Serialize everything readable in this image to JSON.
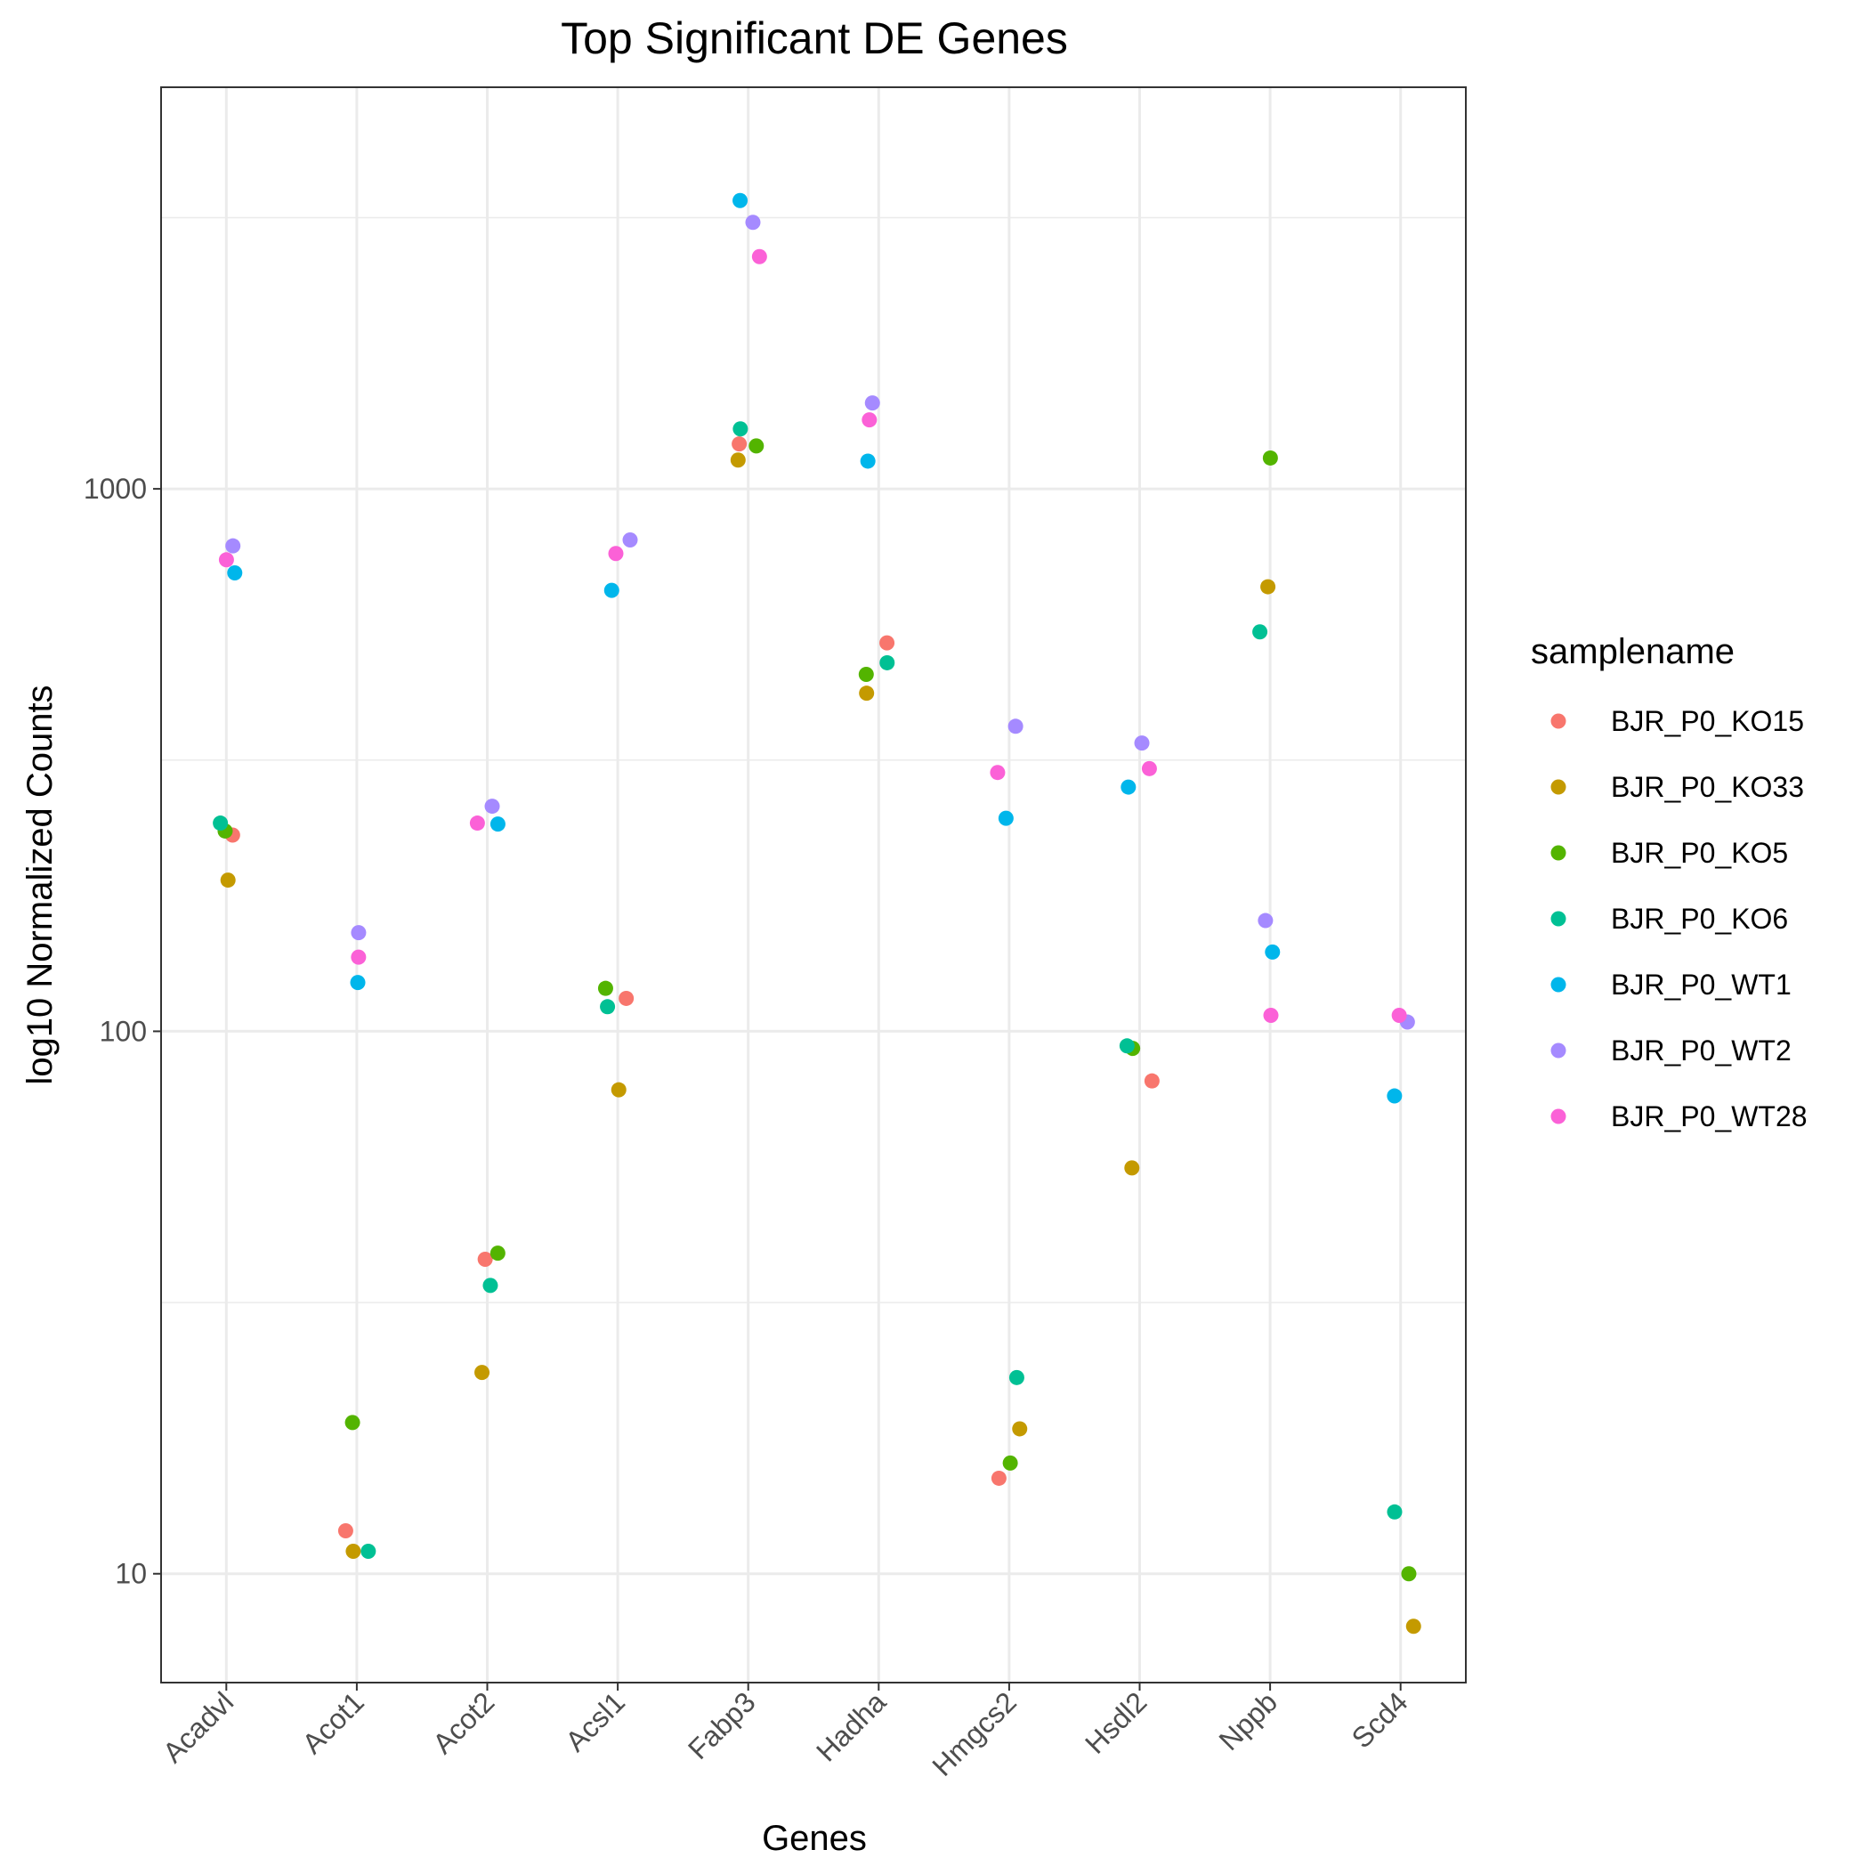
{
  "chart_data": {
    "type": "scatter",
    "title": "Top Significant DE Genes",
    "xlabel": "Genes",
    "ylabel": "log10 Normalized Counts",
    "y_scale": "log10",
    "ylim": [
      6.3,
      5500
    ],
    "y_ticks": [
      10,
      100,
      1000
    ],
    "y_tick_labels": [
      "10",
      "100",
      "1000"
    ],
    "grid": true,
    "legend": {
      "title": "samplename",
      "placement": "right"
    },
    "categories": [
      "Acadvl",
      "Acot1",
      "Acot2",
      "Acsl1",
      "Fabp3",
      "Hadha",
      "Hmgcs2",
      "Hsdl2",
      "Nppb",
      "Scd4"
    ],
    "series": [
      {
        "name": "BJR_P0_KO15",
        "color": "#F8766D",
        "points": [
          {
            "x": "Acadvl",
            "y": 230
          },
          {
            "x": "Acot1",
            "y": 12
          },
          {
            "x": "Acot2",
            "y": 38
          },
          {
            "x": "Acsl1",
            "y": 115
          },
          {
            "x": "Fabp3",
            "y": 1210
          },
          {
            "x": "Hadha",
            "y": 520
          },
          {
            "x": "Hmgcs2",
            "y": 15
          },
          {
            "x": "Hsdl2",
            "y": 81
          }
        ]
      },
      {
        "name": "BJR_P0_KO33",
        "color": "#C49A00",
        "points": [
          {
            "x": "Acadvl",
            "y": 190
          },
          {
            "x": "Acot1",
            "y": 11
          },
          {
            "x": "Acot2",
            "y": 23.5
          },
          {
            "x": "Acsl1",
            "y": 78
          },
          {
            "x": "Fabp3",
            "y": 1130
          },
          {
            "x": "Hadha",
            "y": 420
          },
          {
            "x": "Hmgcs2",
            "y": 18.5
          },
          {
            "x": "Hsdl2",
            "y": 56
          },
          {
            "x": "Nppb",
            "y": 660
          },
          {
            "x": "Scd4",
            "y": 8
          }
        ]
      },
      {
        "name": "BJR_P0_KO5",
        "color": "#53B400",
        "points": [
          {
            "x": "Acadvl",
            "y": 234
          },
          {
            "x": "Acot1",
            "y": 19
          },
          {
            "x": "Acot2",
            "y": 39
          },
          {
            "x": "Acsl1",
            "y": 120
          },
          {
            "x": "Fabp3",
            "y": 1200
          },
          {
            "x": "Hadha",
            "y": 455
          },
          {
            "x": "Hmgcs2",
            "y": 16
          },
          {
            "x": "Hsdl2",
            "y": 93
          },
          {
            "x": "Nppb",
            "y": 1140
          },
          {
            "x": "Scd4",
            "y": 10
          }
        ]
      },
      {
        "name": "BJR_P0_KO6",
        "color": "#00C094",
        "points": [
          {
            "x": "Acadvl",
            "y": 242
          },
          {
            "x": "Acot1",
            "y": 11
          },
          {
            "x": "Acot2",
            "y": 34
          },
          {
            "x": "Acsl1",
            "y": 111
          },
          {
            "x": "Fabp3",
            "y": 1290
          },
          {
            "x": "Hadha",
            "y": 478
          },
          {
            "x": "Hmgcs2",
            "y": 23
          },
          {
            "x": "Hsdl2",
            "y": 94
          },
          {
            "x": "Nppb",
            "y": 545
          },
          {
            "x": "Scd4",
            "y": 13
          }
        ]
      },
      {
        "name": "BJR_P0_WT1",
        "color": "#00B6EB",
        "points": [
          {
            "x": "Acadvl",
            "y": 700
          },
          {
            "x": "Acot1",
            "y": 123
          },
          {
            "x": "Acot2",
            "y": 241
          },
          {
            "x": "Acsl1",
            "y": 650
          },
          {
            "x": "Fabp3",
            "y": 3400
          },
          {
            "x": "Hadha",
            "y": 1125
          },
          {
            "x": "Hmgcs2",
            "y": 247
          },
          {
            "x": "Hsdl2",
            "y": 282
          },
          {
            "x": "Nppb",
            "y": 140
          },
          {
            "x": "Scd4",
            "y": 76
          }
        ]
      },
      {
        "name": "BJR_P0_WT2",
        "color": "#A58AFF",
        "points": [
          {
            "x": "Acadvl",
            "y": 785
          },
          {
            "x": "Acot1",
            "y": 152
          },
          {
            "x": "Acot2",
            "y": 260
          },
          {
            "x": "Acsl1",
            "y": 805
          },
          {
            "x": "Fabp3",
            "y": 3100
          },
          {
            "x": "Hadha",
            "y": 1440
          },
          {
            "x": "Hmgcs2",
            "y": 365
          },
          {
            "x": "Hsdl2",
            "y": 340
          },
          {
            "x": "Nppb",
            "y": 160
          },
          {
            "x": "Scd4",
            "y": 104
          }
        ]
      },
      {
        "name": "BJR_P0_WT28",
        "color": "#FB61D7",
        "points": [
          {
            "x": "Acadvl",
            "y": 740
          },
          {
            "x": "Acot1",
            "y": 137
          },
          {
            "x": "Acot2",
            "y": 242
          },
          {
            "x": "Acsl1",
            "y": 760
          },
          {
            "x": "Fabp3",
            "y": 2680
          },
          {
            "x": "Hadha",
            "y": 1340
          },
          {
            "x": "Hmgcs2",
            "y": 300
          },
          {
            "x": "Hsdl2",
            "y": 305
          },
          {
            "x": "Nppb",
            "y": 107
          },
          {
            "x": "Scd4",
            "y": 107
          }
        ]
      }
    ]
  }
}
